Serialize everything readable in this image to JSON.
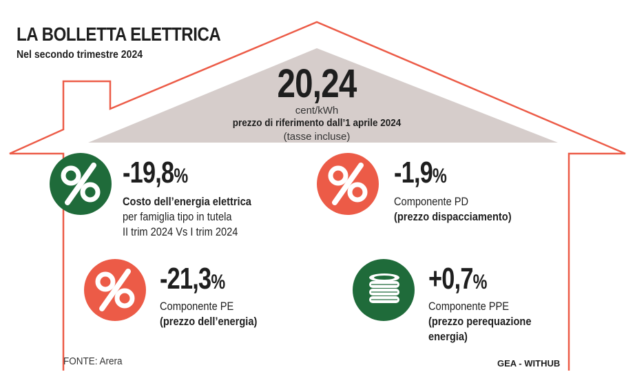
{
  "header": {
    "title": "LA BOLLETTA ELETTRICA",
    "subtitle": "Nel secondo trimestre 2024"
  },
  "price": {
    "value": "20,24",
    "unit": "cent/kWh",
    "description": "prezzo di riferimento dall’1 aprile 2024",
    "note": "(tasse incluse)"
  },
  "items": [
    {
      "value": "-19,8",
      "percent_sign": "%",
      "line1": "Costo dell’energia elettrica",
      "line2": "per famiglia tipo in tutela",
      "line3": "II trim 2024 Vs I trim 2024",
      "icon": "percent-icon",
      "color": "#1f6b3a"
    },
    {
      "value": "-1,9",
      "percent_sign": "%",
      "line1": "Componente PD",
      "line2": "(prezzo dispacciamento)",
      "icon": "percent-icon",
      "color": "#ec5b47"
    },
    {
      "value": "-21,3",
      "percent_sign": "%",
      "line1": "Componente PE",
      "line2": "(prezzo dell’energia)",
      "icon": "percent-icon",
      "color": "#ec5b47"
    },
    {
      "value": "+0,7",
      "percent_sign": "%",
      "line1": "Componente PPE",
      "line2": "(prezzo perequazione",
      "line3": "energia)",
      "icon": "coins-icon",
      "color": "#1f6b3a"
    }
  ],
  "footer": {
    "source": "FONTE: Arera",
    "credit": "GEA - WITHUB"
  },
  "colors": {
    "house_outline": "#ec5b47",
    "roof_fill": "#d6cdcb",
    "green": "#1f6b3a",
    "red": "#ec5b47"
  }
}
